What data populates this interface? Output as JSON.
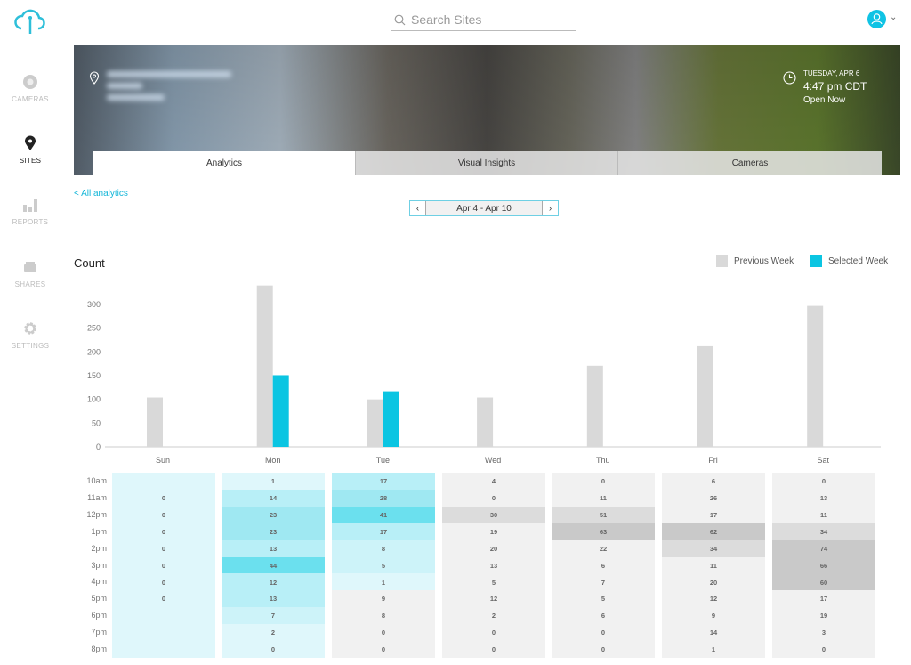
{
  "app": {
    "accent": "#10c3e4"
  },
  "sidebar": {
    "items": [
      {
        "label": "CAMERAS",
        "icon": "camera-icon",
        "active": false
      },
      {
        "label": "SITES",
        "icon": "map-pin-icon",
        "active": true
      },
      {
        "label": "REPORTS",
        "icon": "bar-chart-icon",
        "active": false
      },
      {
        "label": "SHARES",
        "icon": "share-icon",
        "active": false
      },
      {
        "label": "SETTINGS",
        "icon": "gear-icon",
        "active": false
      }
    ]
  },
  "header": {
    "search_placeholder": "Search Sites"
  },
  "site": {
    "date": "TUESDAY, APR 6",
    "time": "4:47 pm CDT",
    "status": "Open Now"
  },
  "tabs": [
    {
      "label": "Analytics",
      "active": true
    },
    {
      "label": "Visual Insights"
    },
    {
      "label": "Cameras"
    }
  ],
  "nav": {
    "back": "< All analytics",
    "range": "Apr 4 - Apr 10"
  },
  "chart_data": {
    "type": "bar",
    "title": "Count",
    "ylim": [
      0,
      350
    ],
    "yticks": [
      0,
      50,
      100,
      150,
      200,
      250,
      300
    ],
    "categories": [
      "Sun",
      "Mon",
      "Tue",
      "Wed",
      "Thu",
      "Fri",
      "Sat"
    ],
    "legend_position": "top-right",
    "series": [
      {
        "name": "Previous Week",
        "color": "#d9d9d9",
        "values": [
          104,
          340,
          100,
          104,
          171,
          212,
          297
        ]
      },
      {
        "name": "Selected Week",
        "color": "#0bc5e2",
        "values": [
          null,
          151,
          117,
          null,
          null,
          null,
          null
        ]
      }
    ]
  },
  "heatmap": {
    "hours": [
      "10am",
      "11am",
      "12pm",
      "1pm",
      "2pm",
      "3pm",
      "4pm",
      "5pm",
      "6pm",
      "7pm",
      "8pm"
    ],
    "days": [
      {
        "day": "Sun",
        "selected_cells": 11,
        "values": [
          null,
          0,
          0,
          0,
          0,
          0,
          0,
          0,
          null,
          null,
          null
        ]
      },
      {
        "day": "Mon",
        "selected_cells": 11,
        "values": [
          1,
          14,
          23,
          23,
          13,
          44,
          12,
          13,
          7,
          2,
          0
        ]
      },
      {
        "day": "Tue",
        "selected_cells": 7,
        "values": [
          17,
          28,
          41,
          17,
          8,
          5,
          1,
          9,
          8,
          0,
          0
        ]
      },
      {
        "day": "Wed",
        "selected_cells": 0,
        "values": [
          4,
          0,
          30,
          19,
          20,
          13,
          5,
          12,
          2,
          0,
          0
        ]
      },
      {
        "day": "Thu",
        "selected_cells": 0,
        "values": [
          0,
          11,
          51,
          63,
          22,
          6,
          7,
          5,
          6,
          0,
          0
        ]
      },
      {
        "day": "Fri",
        "selected_cells": 0,
        "values": [
          6,
          26,
          17,
          62,
          34,
          11,
          20,
          12,
          9,
          14,
          1
        ]
      },
      {
        "day": "Sat",
        "selected_cells": 0,
        "values": [
          0,
          13,
          11,
          34,
          74,
          66,
          60,
          17,
          19,
          3,
          0
        ]
      }
    ]
  }
}
